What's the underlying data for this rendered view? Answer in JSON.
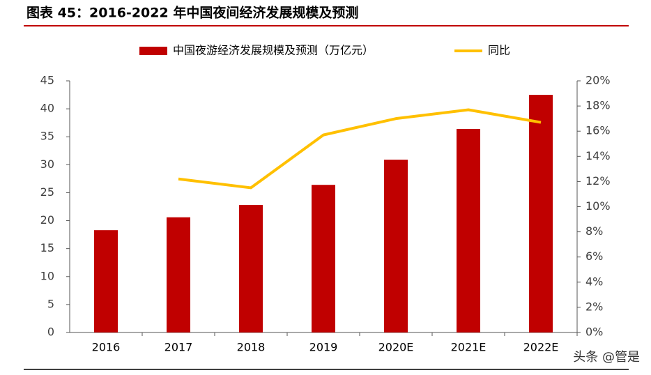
{
  "title": "图表 45：2016-2022 年中国夜间经济发展规模及预测",
  "watermark": "头条 @管是",
  "chart_data": {
    "type": "bar-line",
    "categories": [
      "2016",
      "2017",
      "2018",
      "2019",
      "2020E",
      "2021E",
      "2022E"
    ],
    "series": [
      {
        "name": "中国夜游经济发展规模及预测（万亿元）",
        "type": "bar",
        "color": "#c00000",
        "values": [
          18.3,
          20.6,
          22.8,
          26.4,
          30.9,
          36.4,
          42.5
        ]
      },
      {
        "name": "同比",
        "type": "line",
        "axis": "y2",
        "color": "#ffc000",
        "values": [
          null,
          12.2,
          11.5,
          15.7,
          17.0,
          17.7,
          16.7
        ]
      }
    ],
    "ylim": [
      0,
      45
    ],
    "yticks": [
      0,
      5,
      10,
      15,
      20,
      25,
      30,
      35,
      40,
      45
    ],
    "y2lim": [
      0,
      20
    ],
    "y2ticks": [
      {
        "value": 0,
        "label": "0%"
      },
      {
        "value": 2,
        "label": "2%"
      },
      {
        "value": 4,
        "label": "4%"
      },
      {
        "value": 6,
        "label": "6%"
      },
      {
        "value": 8,
        "label": "8%"
      },
      {
        "value": 10,
        "label": "10%"
      },
      {
        "value": 12,
        "label": "12%"
      },
      {
        "value": 14,
        "label": "14%"
      },
      {
        "value": 16,
        "label": "16%"
      },
      {
        "value": 18,
        "label": "18%"
      },
      {
        "value": 20,
        "label": "20%"
      }
    ],
    "legend": "top"
  }
}
